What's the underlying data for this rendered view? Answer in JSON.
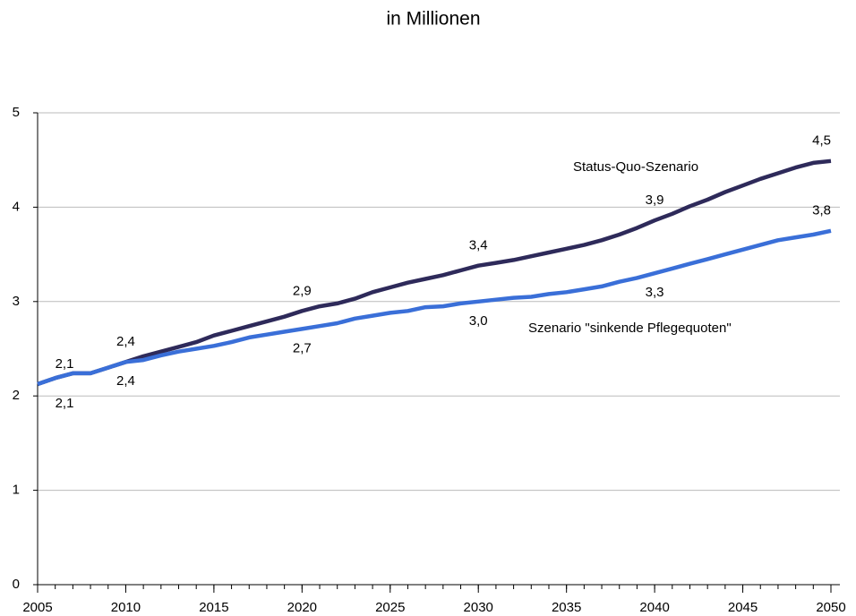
{
  "chart_data": {
    "type": "line",
    "title": "in Millionen",
    "x": [
      2005,
      2006,
      2007,
      2008,
      2009,
      2010,
      2011,
      2012,
      2013,
      2014,
      2015,
      2016,
      2017,
      2018,
      2019,
      2020,
      2021,
      2022,
      2023,
      2024,
      2025,
      2026,
      2027,
      2028,
      2029,
      2030,
      2031,
      2032,
      2033,
      2034,
      2035,
      2036,
      2037,
      2038,
      2039,
      2040,
      2041,
      2042,
      2043,
      2044,
      2045,
      2046,
      2047,
      2048,
      2049,
      2050
    ],
    "series": [
      {
        "name": "Status-Quo-Szenario",
        "color": "#2e2a5a",
        "values": [
          2.125,
          2.19,
          2.24,
          2.24,
          2.3,
          2.36,
          2.42,
          2.47,
          2.52,
          2.57,
          2.64,
          2.69,
          2.74,
          2.79,
          2.84,
          2.9,
          2.95,
          2.98,
          3.03,
          3.1,
          3.15,
          3.2,
          3.24,
          3.28,
          3.33,
          3.38,
          3.41,
          3.44,
          3.48,
          3.52,
          3.56,
          3.6,
          3.65,
          3.71,
          3.78,
          3.86,
          3.93,
          4.01,
          4.08,
          4.16,
          4.23,
          4.3,
          4.36,
          4.42,
          4.47,
          4.49
        ],
        "value_labels": [
          "2,1",
          null,
          null,
          null,
          null,
          "2,4",
          null,
          null,
          null,
          null,
          null,
          null,
          null,
          null,
          null,
          "2,9",
          null,
          null,
          null,
          null,
          null,
          null,
          null,
          null,
          null,
          "3,4",
          null,
          null,
          null,
          null,
          null,
          null,
          null,
          null,
          null,
          "3,9",
          null,
          null,
          null,
          null,
          null,
          null,
          null,
          null,
          null,
          "4,5"
        ]
      },
      {
        "name": "Szenario \"sinkende Pflegequoten\"",
        "color": "#3a6fd8",
        "values": [
          2.125,
          2.19,
          2.24,
          2.24,
          2.3,
          2.36,
          2.38,
          2.43,
          2.47,
          2.5,
          2.53,
          2.57,
          2.62,
          2.65,
          2.68,
          2.71,
          2.74,
          2.77,
          2.82,
          2.85,
          2.88,
          2.9,
          2.94,
          2.95,
          2.98,
          3.0,
          3.02,
          3.04,
          3.05,
          3.08,
          3.1,
          3.13,
          3.16,
          3.21,
          3.25,
          3.3,
          3.35,
          3.4,
          3.45,
          3.5,
          3.55,
          3.6,
          3.65,
          3.68,
          3.71,
          3.75
        ],
        "value_labels": [
          "2,1",
          null,
          null,
          null,
          null,
          "2,4",
          null,
          null,
          null,
          null,
          null,
          null,
          null,
          null,
          null,
          "2,7",
          null,
          null,
          null,
          null,
          null,
          null,
          null,
          null,
          null,
          "3,0",
          null,
          null,
          null,
          null,
          null,
          null,
          null,
          null,
          null,
          "3,3",
          null,
          null,
          null,
          null,
          null,
          null,
          null,
          null,
          null,
          "3,8"
        ]
      }
    ],
    "xlim": [
      2005,
      2050
    ],
    "xticks": [
      2005,
      2010,
      2015,
      2020,
      2025,
      2030,
      2035,
      2040,
      2045,
      2050
    ],
    "ylim": [
      0,
      5
    ],
    "yticks": [
      0,
      1,
      2,
      3,
      4,
      5
    ],
    "grid": true
  }
}
